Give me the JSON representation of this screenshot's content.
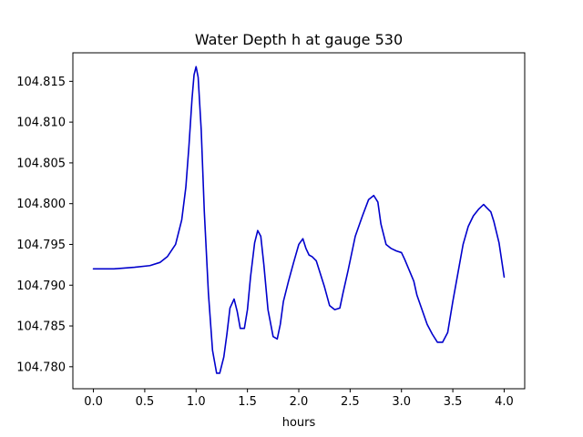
{
  "chart_data": {
    "type": "line",
    "title": "Water Depth h at gauge 530",
    "xlabel": "hours",
    "ylabel": "",
    "xlim": [
      -0.2,
      4.2
    ],
    "ylim": [
      104.7773,
      104.8185
    ],
    "x_ticks": [
      0.0,
      0.5,
      1.0,
      1.5,
      2.0,
      2.5,
      3.0,
      3.5,
      4.0
    ],
    "x_tick_labels": [
      "0.0",
      "0.5",
      "1.0",
      "1.5",
      "2.0",
      "2.5",
      "3.0",
      "3.5",
      "4.0"
    ],
    "y_ticks": [
      104.78,
      104.785,
      104.79,
      104.795,
      104.8,
      104.805,
      104.81,
      104.815
    ],
    "y_tick_labels": [
      "104.780",
      "104.785",
      "104.790",
      "104.795",
      "104.800",
      "104.805",
      "104.810",
      "104.815"
    ],
    "grid": false,
    "series": [
      {
        "color": "#0000cc",
        "x": [
          0.0,
          0.2,
          0.4,
          0.55,
          0.65,
          0.72,
          0.8,
          0.86,
          0.9,
          0.93,
          0.96,
          0.98,
          1.0,
          1.02,
          1.05,
          1.08,
          1.12,
          1.16,
          1.2,
          1.23,
          1.27,
          1.3,
          1.33,
          1.37,
          1.4,
          1.43,
          1.47,
          1.5,
          1.53,
          1.57,
          1.6,
          1.63,
          1.66,
          1.7,
          1.75,
          1.79,
          1.82,
          1.85,
          1.9,
          1.95,
          2.0,
          2.04,
          2.07,
          2.1,
          2.13,
          2.17,
          2.2,
          2.25,
          2.3,
          2.35,
          2.4,
          2.43,
          2.48,
          2.55,
          2.62,
          2.68,
          2.73,
          2.77,
          2.8,
          2.85,
          2.9,
          2.95,
          3.0,
          3.03,
          3.07,
          3.12,
          3.15,
          3.2,
          3.25,
          3.3,
          3.35,
          3.4,
          3.45,
          3.5,
          3.55,
          3.6,
          3.65,
          3.7,
          3.75,
          3.8,
          3.83,
          3.87,
          3.9,
          3.95,
          4.0
        ],
        "y": [
          104.792,
          104.792,
          104.7922,
          104.7924,
          104.7928,
          104.7935,
          104.795,
          104.798,
          104.802,
          104.807,
          104.8128,
          104.8158,
          104.8168,
          104.8155,
          104.809,
          104.799,
          104.789,
          104.782,
          104.7792,
          104.7792,
          104.7812,
          104.784,
          104.7872,
          104.7883,
          104.7868,
          104.7847,
          104.7847,
          104.787,
          104.791,
          104.7952,
          104.7967,
          104.796,
          104.7925,
          104.787,
          104.7837,
          104.7834,
          104.7852,
          104.788,
          104.7905,
          104.7928,
          104.795,
          104.7957,
          104.7945,
          104.7937,
          104.7935,
          104.793,
          104.7918,
          104.7898,
          104.7875,
          104.787,
          104.7872,
          104.789,
          104.7918,
          104.796,
          104.7985,
          104.8005,
          104.801,
          104.8002,
          104.7975,
          104.795,
          104.7945,
          104.7942,
          104.794,
          104.7932,
          104.792,
          104.7905,
          104.7888,
          104.787,
          104.7852,
          104.784,
          104.783,
          104.783,
          104.7842,
          104.788,
          104.7915,
          104.795,
          104.7972,
          104.7985,
          104.7993,
          104.7999,
          104.7995,
          104.799,
          104.7978,
          104.7952,
          104.791
        ]
      }
    ]
  }
}
